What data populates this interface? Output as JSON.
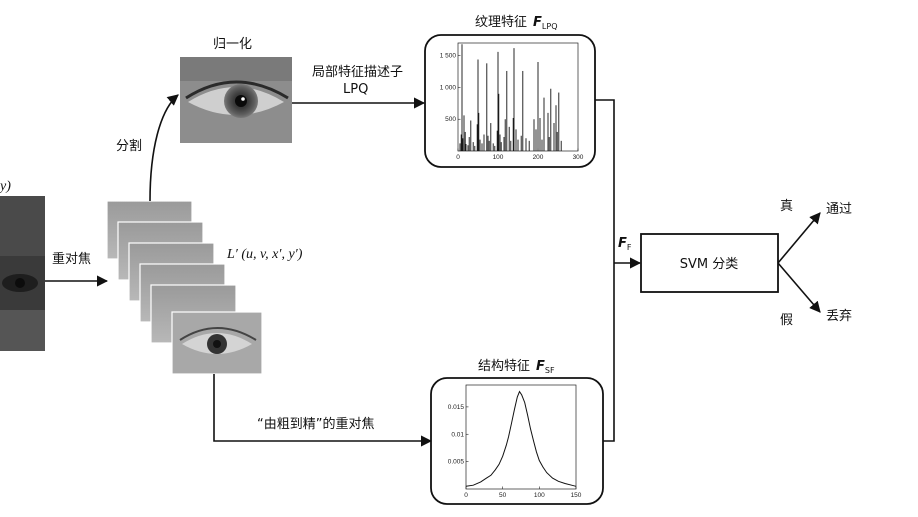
{
  "labels": {
    "partial_y": "y)",
    "refocus": "重对焦",
    "segment": "分割",
    "normalize": "归一化",
    "local_descriptor": "局部特征描述子",
    "lpq": "LPQ",
    "texture_feature": "纹理特征",
    "f_lpq_main": "F",
    "f_lpq_sub": "LPQ",
    "lightfield": "L′ (u, v, x′, y′)",
    "coarse_to_fine": "“由粗到精”的重对焦",
    "structure_feature": "结构特征",
    "f_sf_main": "F",
    "f_sf_sub": "SF",
    "ff_main": "F",
    "ff_sub": "F",
    "svm": "SVM 分类",
    "true_label": "真",
    "false_label": "假",
    "pass": "通过",
    "discard": "丢弃"
  },
  "chart_data": [
    {
      "type": "bar",
      "title": "纹理特征 F_LPQ",
      "xlim": [
        0,
        300
      ],
      "ylim": [
        0,
        1700
      ],
      "x_ticks": [
        "0",
        "100",
        "200",
        "300"
      ],
      "y_ticks": [
        "500",
        "1 000",
        "1 500"
      ],
      "x": [
        5,
        8,
        10,
        12,
        15,
        18,
        20,
        25,
        28,
        32,
        38,
        42,
        48,
        50,
        52,
        55,
        60,
        65,
        72,
        75,
        78,
        82,
        88,
        92,
        98,
        100,
        102,
        105,
        108,
        115,
        118,
        122,
        128,
        132,
        138,
        140,
        145,
        150,
        158,
        162,
        170,
        178,
        190,
        195,
        200,
        205,
        210,
        215,
        225,
        228,
        232,
        240,
        245,
        248,
        252,
        258
      ],
      "values": [
        120,
        260,
        1680,
        200,
        560,
        300,
        110,
        90,
        220,
        480,
        140,
        80,
        420,
        1440,
        600,
        180,
        120,
        260,
        1380,
        240,
        160,
        440,
        120,
        80,
        320,
        1560,
        900,
        260,
        140,
        220,
        500,
        1260,
        380,
        160,
        520,
        1620,
        340,
        180,
        240,
        1260,
        200,
        160,
        500,
        340,
        1400,
        520,
        180,
        840,
        600,
        220,
        980,
        440,
        720,
        300,
        920,
        160
      ]
    },
    {
      "type": "line",
      "title": "结构特征 F_SF",
      "xlim": [
        0,
        150
      ],
      "ylim": [
        0,
        0.019
      ],
      "x_ticks": [
        "0",
        "50",
        "100",
        "150"
      ],
      "y_ticks": [
        "0.005",
        "0.01",
        "0.015"
      ],
      "x": [
        0,
        10,
        20,
        28,
        34,
        40,
        45,
        50,
        55,
        58,
        62,
        66,
        70,
        73,
        76,
        80,
        84,
        88,
        92,
        96,
        100,
        105,
        110,
        118,
        126,
        135,
        144,
        150
      ],
      "values": [
        0.0005,
        0.0007,
        0.0013,
        0.002,
        0.0025,
        0.0035,
        0.0045,
        0.006,
        0.008,
        0.0095,
        0.012,
        0.0145,
        0.0168,
        0.0178,
        0.0172,
        0.0158,
        0.0135,
        0.011,
        0.0088,
        0.0068,
        0.0052,
        0.004,
        0.003,
        0.002,
        0.0014,
        0.001,
        0.0007,
        0.0005
      ]
    }
  ]
}
